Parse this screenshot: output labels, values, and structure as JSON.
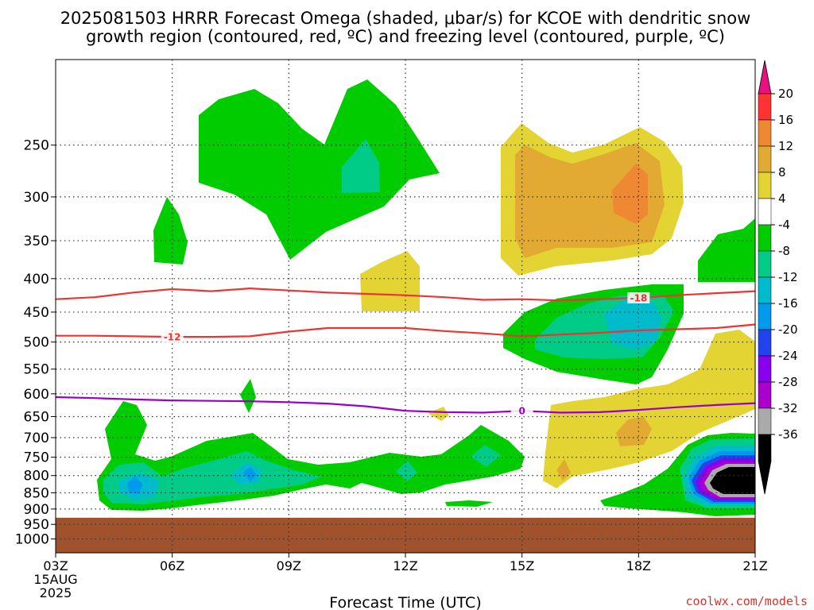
{
  "title_line1": "2025081503 HRRR Forecast Omega (shaded, μbar/s) for KCOE with dendritic snow",
  "title_line2": "growth region (contoured, red, ºC) and freezing level (contoured, purple, ºC)",
  "credit": "coolwx.com/models",
  "chart_data": {
    "type": "heatmap",
    "title": "2025081503 HRRR Forecast Omega (shaded, μbar/s) for KCOE with dendritic snow growth region (contoured, red, ºC) and freezing level (contoured, purple, ºC)",
    "xlabel": "Forecast Time (UTC)",
    "ylabel": "",
    "x_ticks": [
      {
        "hour": 0,
        "label": "03Z",
        "sub1": "15AUG",
        "sub2": "2025"
      },
      {
        "hour": 3,
        "label": "06Z"
      },
      {
        "hour": 6,
        "label": "09Z"
      },
      {
        "hour": 9,
        "label": "12Z"
      },
      {
        "hour": 12,
        "label": "15Z"
      },
      {
        "hour": 15,
        "label": "18Z"
      },
      {
        "hour": 18,
        "label": "21Z"
      }
    ],
    "xlim": [
      0,
      18
    ],
    "y_scale": "log",
    "ylim": [
      1050,
      185
    ],
    "y_ticks": [
      250,
      300,
      350,
      400,
      450,
      500,
      550,
      600,
      650,
      700,
      750,
      800,
      850,
      900,
      950,
      1000
    ],
    "ground_pressure": 928,
    "colorbar": {
      "levels": [
        20,
        16,
        12,
        8,
        4,
        -4,
        -8,
        -12,
        -16,
        -20,
        -24,
        -28,
        -32,
        -36
      ],
      "colors": [
        "#ff3333",
        "#ee8833",
        "#e3aa33",
        "#e3d433",
        "#ffffff",
        "#00cc00",
        "#00cc88",
        "#00bbcc",
        "#0099ee",
        "#2244ee",
        "#8800ee",
        "#aa00cc",
        "#aaaaaa",
        "#000000"
      ],
      "top_arrow_color": "#e8117f",
      "bottom_arrow_color": "#000000"
    },
    "contours": [
      {
        "name": "-18",
        "color": "#ee3333",
        "label_at_hour": 15,
        "points": [
          [
            0,
            430
          ],
          [
            1,
            427
          ],
          [
            2,
            420
          ],
          [
            3,
            415
          ],
          [
            4,
            418
          ],
          [
            5,
            414
          ],
          [
            6,
            417
          ],
          [
            7,
            420
          ],
          [
            8,
            422
          ],
          [
            9,
            424
          ],
          [
            10,
            427
          ],
          [
            11,
            431
          ],
          [
            12,
            430
          ],
          [
            13,
            432
          ],
          [
            14,
            430
          ],
          [
            15,
            428
          ],
          [
            16,
            424
          ],
          [
            17,
            421
          ],
          [
            18,
            418
          ]
        ]
      },
      {
        "name": "-12",
        "color": "#ee3333",
        "label_at_hour": 3,
        "points": [
          [
            0,
            489
          ],
          [
            1,
            489
          ],
          [
            2,
            490
          ],
          [
            3,
            491
          ],
          [
            4,
            491
          ],
          [
            5,
            490
          ],
          [
            6,
            482
          ],
          [
            7,
            476
          ],
          [
            8,
            476
          ],
          [
            9,
            476
          ],
          [
            10,
            481
          ],
          [
            11,
            485
          ],
          [
            12,
            490
          ],
          [
            13,
            487
          ],
          [
            14,
            484
          ],
          [
            15,
            480
          ],
          [
            16,
            478
          ],
          [
            17,
            476
          ],
          [
            18,
            470
          ]
        ]
      },
      {
        "name": "0",
        "color": "#9900cc",
        "label_at_hour": 12,
        "points": [
          [
            0,
            607
          ],
          [
            1,
            609
          ],
          [
            2,
            612
          ],
          [
            3,
            614
          ],
          [
            4,
            615
          ],
          [
            5,
            616
          ],
          [
            6,
            618
          ],
          [
            7,
            621
          ],
          [
            8,
            627
          ],
          [
            9,
            637
          ],
          [
            10,
            640
          ],
          [
            11,
            641
          ],
          [
            12,
            637
          ],
          [
            13,
            641
          ],
          [
            14,
            640
          ],
          [
            15,
            635
          ],
          [
            16,
            629
          ],
          [
            17,
            624
          ],
          [
            18,
            620
          ]
        ]
      }
    ]
  }
}
